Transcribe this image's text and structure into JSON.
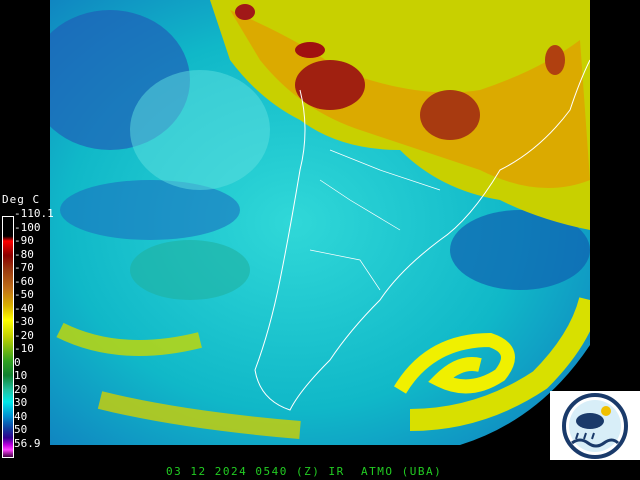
{
  "legend": {
    "title": "Deg C",
    "ticks": [
      "-110.1",
      "-100",
      "-90",
      "-80",
      "-70",
      "-60",
      "-50",
      "-40",
      "-30",
      "-20",
      "-10",
      "0",
      "10",
      "20",
      "30",
      "40",
      "50",
      "56.9"
    ]
  },
  "caption": {
    "date": "03 12 2024",
    "time": "0540",
    "zone": "(Z)",
    "channel": "IR",
    "source": "ATMO (UBA)"
  },
  "colors": {
    "caption": "#22cc22",
    "cold_top": "#ff0000",
    "warm_surface": "#00e8e8"
  },
  "logo": {
    "icon": "weather-station-logo"
  }
}
